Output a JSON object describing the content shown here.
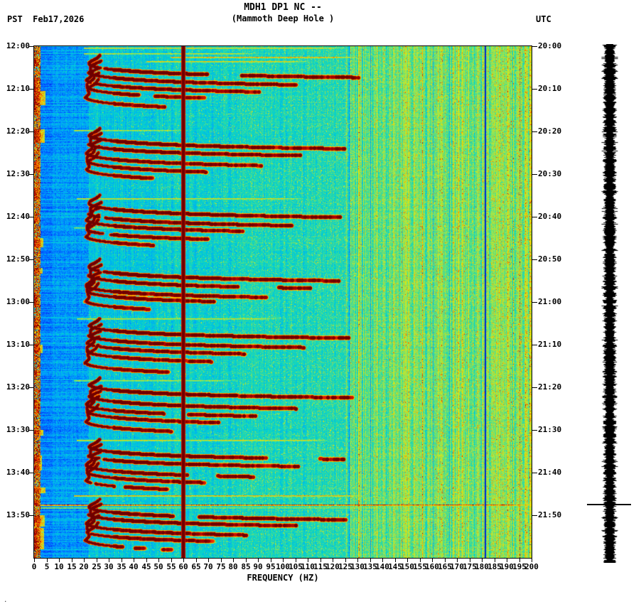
{
  "header": {
    "title": "MDH1 DP1 NC --",
    "subtitle": "(Mammoth Deep Hole )",
    "left_label": "PST  Feb17,2026",
    "right_label": "UTC"
  },
  "axes": {
    "left_ticks": [
      "12:00",
      "12:10",
      "12:20",
      "12:30",
      "12:40",
      "12:50",
      "13:00",
      "13:10",
      "13:20",
      "13:30",
      "13:40",
      "13:50"
    ],
    "right_ticks": [
      "20:00",
      "20:10",
      "20:20",
      "20:30",
      "20:40",
      "20:50",
      "21:00",
      "21:10",
      "21:20",
      "21:30",
      "21:40",
      "21:50"
    ],
    "freq_ticks": [
      0,
      5,
      10,
      15,
      20,
      25,
      30,
      35,
      40,
      45,
      50,
      55,
      60,
      65,
      70,
      75,
      80,
      85,
      90,
      95,
      100,
      105,
      110,
      115,
      120,
      125,
      130,
      135,
      140,
      145,
      150,
      155,
      160,
      165,
      170,
      175,
      180,
      185,
      190,
      195,
      200
    ],
    "xlabel": "FREQUENCY (HZ)"
  },
  "chart_data": {
    "type": "heatmap",
    "title": "MDH1 DP1 NC --",
    "subtitle": "(Mammoth Deep Hole )",
    "station": "MDH1 DP1 NC (Mammoth Deep Hole)",
    "xlabel": "FREQUENCY (HZ)",
    "x_range_hz": [
      0,
      200
    ],
    "duration_min": 120,
    "date_pst": "Feb17,2026",
    "time_start_pst": "12:00",
    "time_end_pst": "14:00",
    "time_start_utc": "20:00",
    "time_end_utc": "22:00",
    "tick_interval_min": 10,
    "colormap": "jet-like",
    "colormap_stops": [
      [
        0.0,
        "#000082"
      ],
      [
        0.14,
        "#003cff"
      ],
      [
        0.26,
        "#00a0ff"
      ],
      [
        0.36,
        "#00d2d2"
      ],
      [
        0.46,
        "#3cdc96"
      ],
      [
        0.56,
        "#a0e650"
      ],
      [
        0.66,
        "#e6e600"
      ],
      [
        0.76,
        "#ffa000"
      ],
      [
        0.86,
        "#eb2800"
      ],
      [
        0.94,
        "#a00000"
      ],
      [
        1.0,
        "#6e0000"
      ]
    ],
    "features": {
      "mains_hum_line_hz": 60,
      "instrument_notch_hz": 181,
      "broadband_event_min": 107.5,
      "tremor_event_starts_min": [
        2,
        19,
        35,
        50,
        64,
        78,
        92,
        106
      ],
      "tremor_harmonic_arcs_per_event": 5,
      "tremor_base_freq_hz": 20.5,
      "tremor_arc_max_freq_hz": 127,
      "low_freq_blue_band_hz": [
        3,
        22
      ],
      "high_freq_striping_above_hz": 130,
      "streaks": [
        {
          "t": 0.4,
          "f0": 20,
          "f1": 125,
          "v": 0.72
        },
        {
          "t": 1.6,
          "f0": 20,
          "f1": 90,
          "v": 0.66
        },
        {
          "t": 2.5,
          "f0": 55,
          "f1": 130,
          "v": 0.78
        },
        {
          "t": 3.5,
          "f0": 45,
          "f1": 110,
          "v": 0.72
        },
        {
          "t": 19.6,
          "f0": 16,
          "f1": 62,
          "v": 0.64
        },
        {
          "t": 35.6,
          "f0": 17,
          "f1": 108,
          "v": 0.7
        },
        {
          "t": 42.5,
          "f0": 16,
          "f1": 70,
          "v": 0.6
        },
        {
          "t": 63.8,
          "f0": 17,
          "f1": 98,
          "v": 0.68
        },
        {
          "t": 78.4,
          "f0": 16,
          "f1": 82,
          "v": 0.63
        },
        {
          "t": 92.3,
          "f0": 17,
          "f1": 118,
          "v": 0.7
        },
        {
          "t": 105.4,
          "f0": 16,
          "f1": 132,
          "v": 0.76
        },
        {
          "t": 107.5,
          "f0": 0,
          "f1": 200,
          "v": 0.9
        },
        {
          "t": 108.1,
          "f0": 0,
          "f1": 145,
          "v": 0.6
        }
      ],
      "left_channel_bursts_min": [
        3,
        7.5,
        10.5,
        13.5,
        19.5,
        27,
        33,
        40,
        45,
        52,
        58,
        64.5,
        70,
        76,
        83,
        90,
        96,
        103.5,
        106.5,
        110,
        113,
        116
      ]
    }
  },
  "side_strip": {
    "description": "clipped amplitude trace",
    "marker_time_min": 107.5
  },
  "corner_mark": "."
}
